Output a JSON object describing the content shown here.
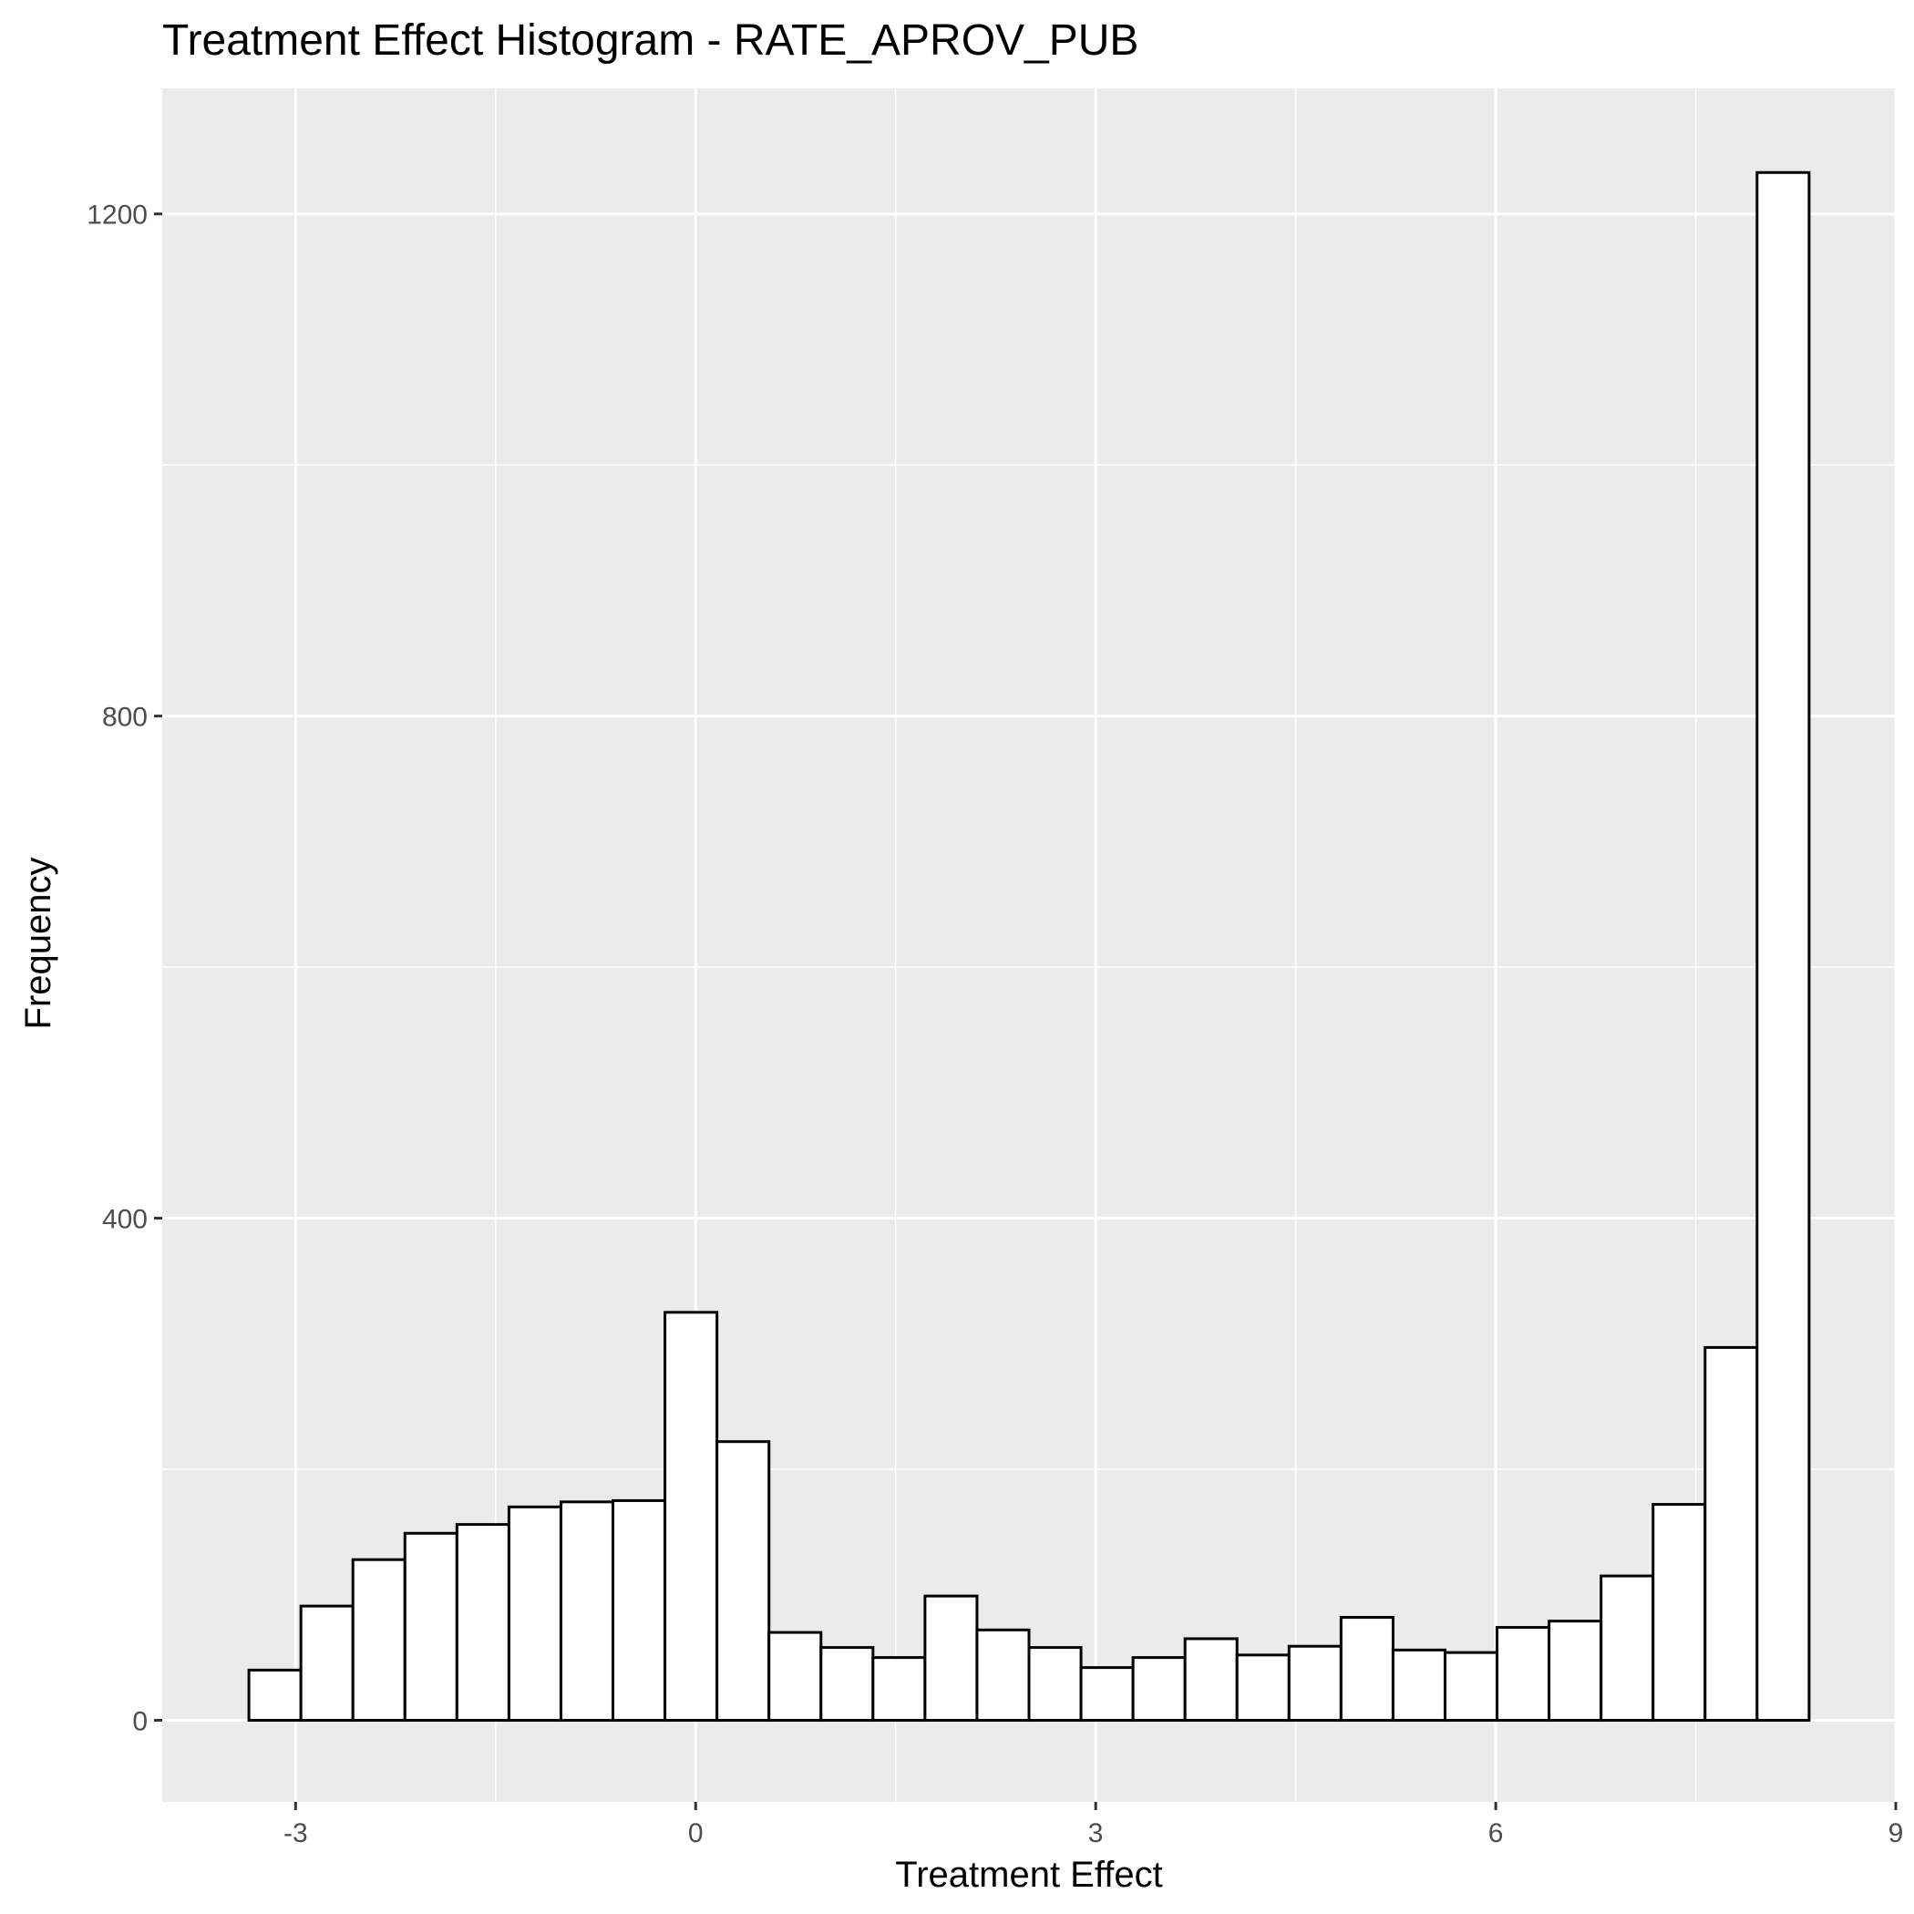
{
  "chart_data": {
    "type": "bar",
    "title": "Treatment Effect Histogram -  RATE_APROV_PUB",
    "xlabel": "Treatment Effect",
    "ylabel": "Frequency",
    "xlim": [
      -4.0,
      9.0
    ],
    "ylim": [
      -65,
      1300
    ],
    "x_ticks": [
      -3,
      0,
      3,
      6,
      9
    ],
    "x_tick_labels": [
      "-3",
      "0",
      "3",
      "6",
      "9"
    ],
    "y_ticks": [
      0,
      400,
      800,
      1200
    ],
    "y_tick_labels": [
      "0",
      "400",
      "800",
      "1200"
    ],
    "grid": true,
    "legend": "none",
    "bin_width": 0.39,
    "bins": [
      {
        "x0": -3.35,
        "x1": -2.96,
        "count": 40
      },
      {
        "x0": -2.96,
        "x1": -2.57,
        "count": 91
      },
      {
        "x0": -2.57,
        "x1": -2.18,
        "count": 128
      },
      {
        "x0": -2.18,
        "x1": -1.79,
        "count": 149
      },
      {
        "x0": -1.79,
        "x1": -1.4,
        "count": 156
      },
      {
        "x0": -1.4,
        "x1": -1.01,
        "count": 170
      },
      {
        "x0": -1.01,
        "x1": -0.62,
        "count": 174
      },
      {
        "x0": -0.62,
        "x1": -0.23,
        "count": 175
      },
      {
        "x0": -0.23,
        "x1": 0.16,
        "count": 325
      },
      {
        "x0": 0.16,
        "x1": 0.55,
        "count": 222
      },
      {
        "x0": 0.55,
        "x1": 0.94,
        "count": 70
      },
      {
        "x0": 0.94,
        "x1": 1.33,
        "count": 58
      },
      {
        "x0": 1.33,
        "x1": 1.72,
        "count": 50
      },
      {
        "x0": 1.72,
        "x1": 2.11,
        "count": 99
      },
      {
        "x0": 2.11,
        "x1": 2.5,
        "count": 72
      },
      {
        "x0": 2.5,
        "x1": 2.89,
        "count": 58
      },
      {
        "x0": 2.89,
        "x1": 3.28,
        "count": 42
      },
      {
        "x0": 3.28,
        "x1": 3.67,
        "count": 50
      },
      {
        "x0": 3.67,
        "x1": 4.06,
        "count": 65
      },
      {
        "x0": 4.06,
        "x1": 4.45,
        "count": 52
      },
      {
        "x0": 4.45,
        "x1": 4.84,
        "count": 59
      },
      {
        "x0": 4.84,
        "x1": 5.23,
        "count": 82
      },
      {
        "x0": 5.23,
        "x1": 5.62,
        "count": 56
      },
      {
        "x0": 5.62,
        "x1": 6.01,
        "count": 54
      },
      {
        "x0": 6.01,
        "x1": 6.4,
        "count": 74
      },
      {
        "x0": 6.4,
        "x1": 6.79,
        "count": 79
      },
      {
        "x0": 6.79,
        "x1": 7.18,
        "count": 115
      },
      {
        "x0": 7.18,
        "x1": 7.57,
        "count": 172
      },
      {
        "x0": 7.57,
        "x1": 7.96,
        "count": 297
      },
      {
        "x0": 7.96,
        "x1": 8.35,
        "count": 1233
      }
    ],
    "colors": {
      "panel_background": "#ebebeb",
      "grid_major": "#ffffff",
      "bar_fill": "#ffffff",
      "bar_outline": "#000000",
      "tick_text": "#4d4d4d"
    }
  }
}
